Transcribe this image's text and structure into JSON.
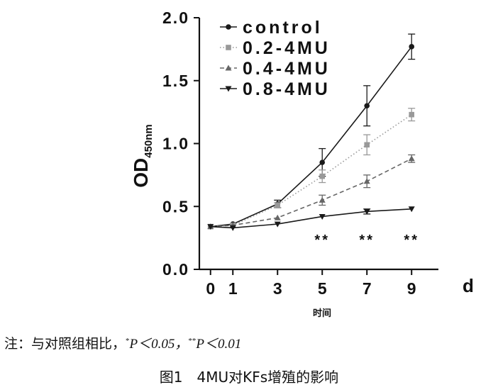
{
  "chart_data": {
    "type": "line",
    "x": [
      0,
      1,
      3,
      5,
      7,
      9
    ],
    "x_ticks": [
      "0",
      "1",
      "3",
      "5",
      "7",
      "9"
    ],
    "y_ticks": [
      "0.0",
      "0.5",
      "1.0",
      "1.5",
      "2.0"
    ],
    "ylim": [
      0,
      2.0
    ],
    "ylabel_main": "OD",
    "ylabel_sub": "450nm",
    "xlabel": "d",
    "xlabel_sub": "时间",
    "grid": false,
    "legend_position": "top-left",
    "series": [
      {
        "name": "control",
        "marker": "circle",
        "dash": "solid",
        "color": "#1a1a1a",
        "values": [
          0.34,
          0.36,
          0.52,
          0.85,
          1.3,
          1.77
        ],
        "errors": [
          0.0,
          0.0,
          0.03,
          0.11,
          0.16,
          0.1
        ]
      },
      {
        "name": "0.2-4MU",
        "marker": "square",
        "dash": "dotted",
        "color": "#999999",
        "values": [
          0.34,
          0.35,
          0.51,
          0.74,
          0.99,
          1.23
        ],
        "errors": [
          0.0,
          0.0,
          0.02,
          0.05,
          0.08,
          0.05
        ]
      },
      {
        "name": "0.4-4MU",
        "marker": "triangle-up",
        "dash": "dashed",
        "color": "#666666",
        "values": [
          0.34,
          0.35,
          0.41,
          0.55,
          0.7,
          0.88
        ],
        "errors": [
          0.0,
          0.0,
          0.0,
          0.04,
          0.05,
          0.03
        ]
      },
      {
        "name": "0.8-4MU",
        "marker": "triangle-down",
        "dash": "solid",
        "color": "#1a1a1a",
        "values": [
          0.34,
          0.33,
          0.36,
          0.42,
          0.46,
          0.48
        ],
        "errors": [
          0.0,
          0.0,
          0.0,
          0.0,
          0.02,
          0.0
        ]
      }
    ],
    "annotations": [
      {
        "x": 5,
        "text": "**"
      },
      {
        "x": 7,
        "text": "**"
      },
      {
        "x": 9,
        "text": "**"
      }
    ]
  },
  "footnote": {
    "prefix": "注：与对照组相比，",
    "sig1_mark": "*",
    "sig1_text": "P＜0.05，",
    "sig2_mark": "**",
    "sig2_text": "P＜0.01"
  },
  "caption": "图1　4MU对KFs增殖的影响"
}
